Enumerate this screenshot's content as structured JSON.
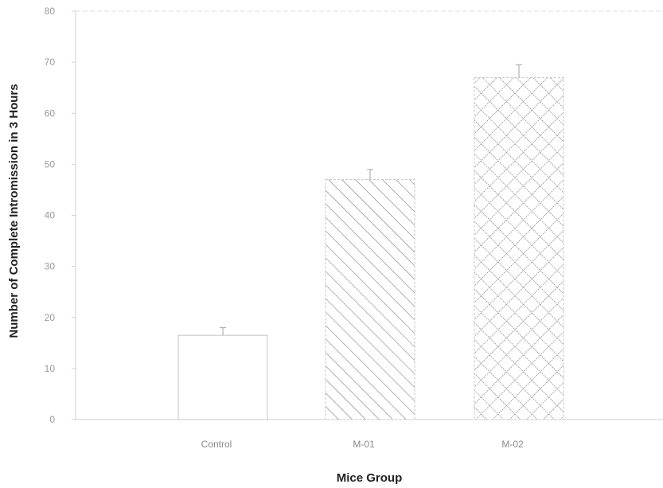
{
  "chart_data": {
    "type": "bar",
    "title": "",
    "xlabel": "Mice Group",
    "ylabel": "Number of Complete Intromission in 3 Hours",
    "ylim": [
      0,
      80
    ],
    "yticks": [
      "0",
      "10",
      "20",
      "30",
      "40",
      "50",
      "60",
      "70",
      "80"
    ],
    "categories": [
      "Control",
      "M-01",
      "M-02"
    ],
    "values": [
      16.5,
      47,
      67
    ],
    "errors": [
      1.5,
      2,
      2.5
    ],
    "patterns": [
      "none",
      "diagonal-hatch",
      "cross-hatch"
    ],
    "grid": false,
    "legend": "none"
  },
  "colors": {
    "axis": "#d0d0d0",
    "bar_outline": "#c4c4c4",
    "hatch": "#6a6a6a",
    "error_bar": "#b0b0b0"
  }
}
